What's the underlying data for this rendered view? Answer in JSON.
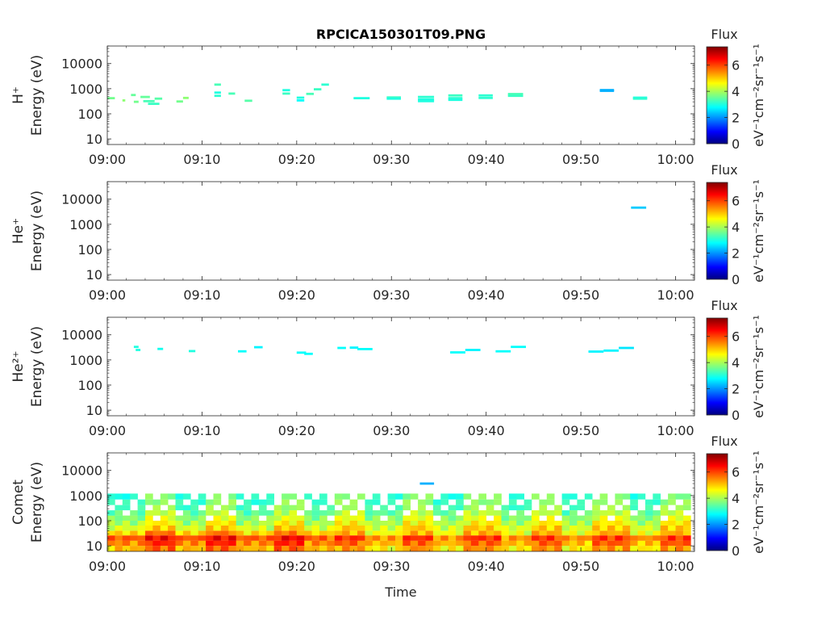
{
  "chart_data": {
    "type": "heatmap",
    "title": "RPCICA150301T09.PNG",
    "xlabel": "Time",
    "x_ticks": [
      "09:00",
      "09:10",
      "09:20",
      "09:30",
      "09:40",
      "09:50",
      "10:00"
    ],
    "xlim_minutes": [
      0,
      62
    ],
    "y_scale": "log",
    "y_ticks": [
      "10",
      "100",
      "1000",
      "10000"
    ],
    "ylim": [
      6,
      50000
    ],
    "colorbar": {
      "title": "Flux",
      "label": "eV⁻¹cm⁻²sr⁻¹s⁻¹",
      "ticks": [
        "0",
        "2",
        "4",
        "6"
      ],
      "range": [
        0,
        7.4
      ],
      "colormap": [
        "#00008f",
        "#0000ff",
        "#00ffff",
        "#ffff00",
        "#ff0000",
        "#800000"
      ]
    },
    "panels": [
      {
        "species": "H⁺",
        "ylabel": "Energy (eV)",
        "segments": [
          {
            "t0": 0.0,
            "t1": 0.8,
            "e": 420,
            "v": 3.6
          },
          {
            "t0": 1.6,
            "t1": 1.9,
            "e": 340,
            "v": 3.8
          },
          {
            "t0": 2.5,
            "t1": 3.0,
            "e": 560,
            "v": 3.5
          },
          {
            "t0": 2.8,
            "t1": 3.3,
            "e": 300,
            "v": 3.6
          },
          {
            "t0": 3.5,
            "t1": 4.5,
            "e": 470,
            "v": 3.5
          },
          {
            "t0": 3.8,
            "t1": 5.0,
            "e": 320,
            "v": 3.3
          },
          {
            "t0": 4.3,
            "t1": 5.5,
            "e": 250,
            "v": 3.2
          },
          {
            "t0": 5.0,
            "t1": 5.8,
            "e": 400,
            "v": 3.4
          },
          {
            "t0": 7.3,
            "t1": 8.0,
            "e": 310,
            "v": 3.6
          },
          {
            "t0": 8.0,
            "t1": 8.6,
            "e": 430,
            "v": 3.8
          },
          {
            "t0": 11.3,
            "t1": 12.0,
            "e": 1450,
            "v": 3.3
          },
          {
            "t0": 11.3,
            "t1": 12.0,
            "e": 700,
            "v": 3.0
          },
          {
            "t0": 11.3,
            "t1": 12.0,
            "e": 520,
            "v": 3.1
          },
          {
            "t0": 12.8,
            "t1": 13.5,
            "e": 640,
            "v": 3.3
          },
          {
            "t0": 14.5,
            "t1": 15.3,
            "e": 330,
            "v": 3.4
          },
          {
            "t0": 18.5,
            "t1": 19.3,
            "e": 870,
            "v": 3.0
          },
          {
            "t0": 18.5,
            "t1": 19.3,
            "e": 640,
            "v": 3.2
          },
          {
            "t0": 20.0,
            "t1": 20.8,
            "e": 440,
            "v": 3.0
          },
          {
            "t0": 20.0,
            "t1": 20.8,
            "e": 340,
            "v": 2.8
          },
          {
            "t0": 21.0,
            "t1": 21.8,
            "e": 620,
            "v": 3.3
          },
          {
            "t0": 21.8,
            "t1": 22.6,
            "e": 950,
            "v": 3.2
          },
          {
            "t0": 22.6,
            "t1": 23.4,
            "e": 1450,
            "v": 3.1
          },
          {
            "t0": 26.0,
            "t1": 27.7,
            "e": 420,
            "v": 3.0
          },
          {
            "t0": 29.5,
            "t1": 31.0,
            "e": 450,
            "v": 3.2
          },
          {
            "t0": 29.5,
            "t1": 31.0,
            "e": 400,
            "v": 3.0
          },
          {
            "t0": 32.8,
            "t1": 34.5,
            "e": 470,
            "v": 3.1
          },
          {
            "t0": 32.8,
            "t1": 34.5,
            "e": 370,
            "v": 3.0
          },
          {
            "t0": 32.8,
            "t1": 34.5,
            "e": 320,
            "v": 3.0
          },
          {
            "t0": 36.0,
            "t1": 37.5,
            "e": 540,
            "v": 3.2
          },
          {
            "t0": 36.0,
            "t1": 37.5,
            "e": 420,
            "v": 3.1
          },
          {
            "t0": 36.0,
            "t1": 37.5,
            "e": 360,
            "v": 3.0
          },
          {
            "t0": 39.2,
            "t1": 40.7,
            "e": 540,
            "v": 3.1
          },
          {
            "t0": 39.2,
            "t1": 40.7,
            "e": 430,
            "v": 3.1
          },
          {
            "t0": 42.3,
            "t1": 43.9,
            "e": 610,
            "v": 3.3
          },
          {
            "t0": 42.3,
            "t1": 43.9,
            "e": 520,
            "v": 3.2
          },
          {
            "t0": 52.0,
            "t1": 53.5,
            "e": 880,
            "v": 2.2
          },
          {
            "t0": 52.0,
            "t1": 53.5,
            "e": 820,
            "v": 2.2
          },
          {
            "t0": 55.5,
            "t1": 57.0,
            "e": 440,
            "v": 3.0
          },
          {
            "t0": 55.5,
            "t1": 57.0,
            "e": 400,
            "v": 3.1
          }
        ]
      },
      {
        "species": "He⁺",
        "ylabel": "Energy (eV)",
        "segments": [
          {
            "t0": 55.3,
            "t1": 56.9,
            "e": 4600,
            "v": 2.4
          }
        ]
      },
      {
        "species": "He²⁺",
        "ylabel": "Energy (eV)",
        "segments": [
          {
            "t0": 2.8,
            "t1": 3.3,
            "e": 3300,
            "v": 3.0
          },
          {
            "t0": 3.0,
            "t1": 3.5,
            "e": 2500,
            "v": 3.0
          },
          {
            "t0": 5.3,
            "t1": 5.9,
            "e": 2750,
            "v": 2.9
          },
          {
            "t0": 8.6,
            "t1": 9.3,
            "e": 2250,
            "v": 3.0
          },
          {
            "t0": 13.8,
            "t1": 14.7,
            "e": 2200,
            "v": 2.8
          },
          {
            "t0": 15.5,
            "t1": 16.4,
            "e": 3200,
            "v": 2.7
          },
          {
            "t0": 20.0,
            "t1": 21.0,
            "e": 1950,
            "v": 2.8
          },
          {
            "t0": 20.8,
            "t1": 21.7,
            "e": 1750,
            "v": 2.8
          },
          {
            "t0": 24.3,
            "t1": 25.2,
            "e": 3000,
            "v": 2.8
          },
          {
            "t0": 25.6,
            "t1": 26.5,
            "e": 3100,
            "v": 2.7
          },
          {
            "t0": 26.4,
            "t1": 28.0,
            "e": 2700,
            "v": 2.8
          },
          {
            "t0": 36.2,
            "t1": 37.8,
            "e": 2000,
            "v": 2.8
          },
          {
            "t0": 37.8,
            "t1": 39.4,
            "e": 2500,
            "v": 2.7
          },
          {
            "t0": 41.0,
            "t1": 42.6,
            "e": 2200,
            "v": 2.8
          },
          {
            "t0": 42.6,
            "t1": 44.2,
            "e": 3300,
            "v": 2.8
          },
          {
            "t0": 50.8,
            "t1": 52.4,
            "e": 2150,
            "v": 2.7
          },
          {
            "t0": 52.4,
            "t1": 54.0,
            "e": 2350,
            "v": 2.7
          },
          {
            "t0": 54.0,
            "t1": 55.6,
            "e": 3000,
            "v": 2.6
          }
        ]
      },
      {
        "species": "Comet",
        "ylabel": "Energy (eV)",
        "segments": [
          {
            "t0": 33.0,
            "t1": 34.5,
            "e": 3000,
            "v": 2.2
          }
        ]
      }
    ]
  }
}
